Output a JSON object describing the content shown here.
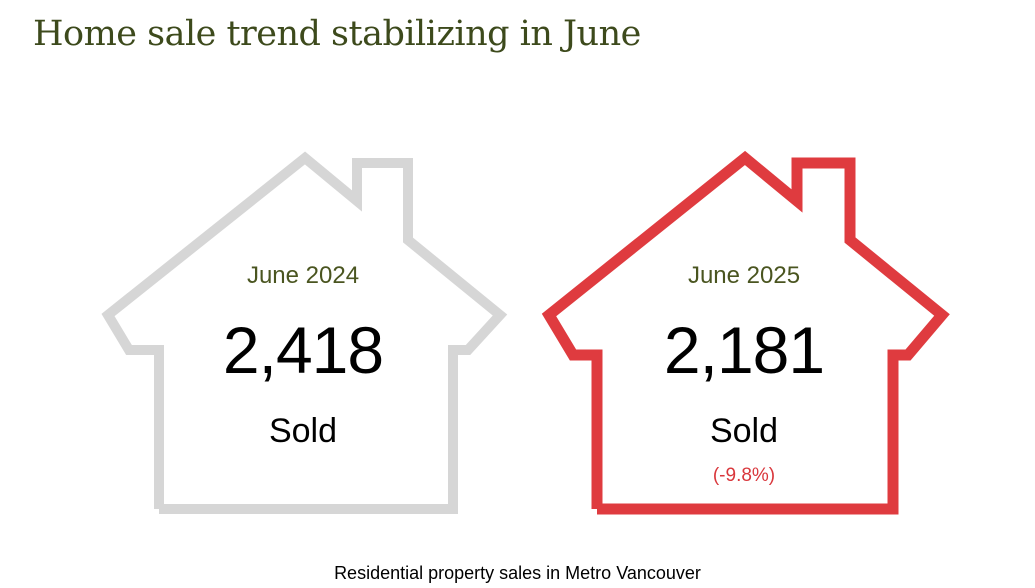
{
  "title": "Home sale trend stabilizing in June",
  "caption": "Residential property sales in Metro Vancouver",
  "colors": {
    "title": "#3d4a1c",
    "period_label": "#4a5520",
    "house_previous": "#d6d6d6",
    "house_current": "#df3b3f",
    "change_text": "#d9373c"
  },
  "chart_data": {
    "type": "table",
    "title": "Home sale trend stabilizing in June",
    "caption": "Residential property sales in Metro Vancouver",
    "unit": "Sold",
    "categories": [
      "June 2024",
      "June 2025"
    ],
    "values": [
      2418,
      2181
    ],
    "cards": [
      {
        "period": "June 2024",
        "value": "2,418",
        "unit": "Sold",
        "change": ""
      },
      {
        "period": "June 2025",
        "value": "2,181",
        "unit": "Sold",
        "change": "(-9.8%)"
      }
    ]
  }
}
